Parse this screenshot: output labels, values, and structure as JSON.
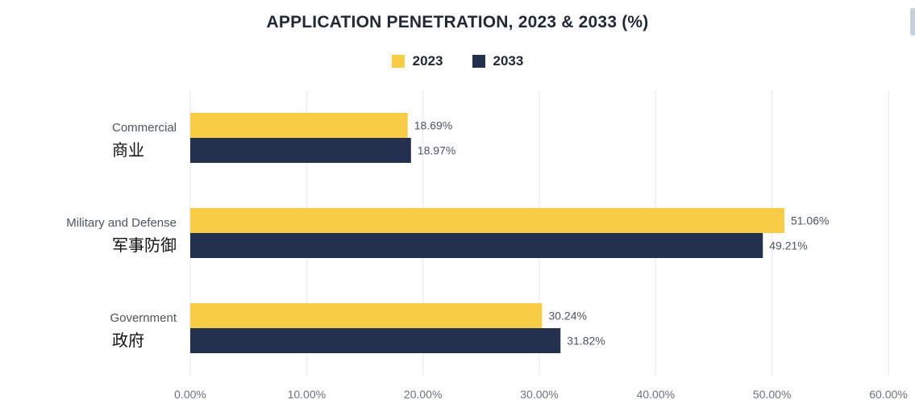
{
  "chart_data": {
    "type": "bar",
    "orientation": "horizontal",
    "title": "APPLICATION PENETRATION, 2023 & 2033 (%)",
    "categories": [
      {
        "en": "Commercial",
        "zh": "商业"
      },
      {
        "en": "Military and Defense",
        "zh": "军事防御"
      },
      {
        "en": "Government",
        "zh": "政府"
      }
    ],
    "series": [
      {
        "name": "2023",
        "color": "#F8CD45",
        "values": [
          18.69,
          51.06,
          30.24
        ],
        "labels": [
          "18.69%",
          "51.06%",
          "30.24%"
        ]
      },
      {
        "name": "2033",
        "color": "#23314F",
        "values": [
          18.97,
          49.21,
          31.82
        ],
        "labels": [
          "18.97%",
          "49.21%",
          "31.82%"
        ]
      }
    ],
    "xlim": [
      0,
      60
    ],
    "xticks": [
      0,
      10,
      20,
      30,
      40,
      50,
      60
    ],
    "xtick_labels": [
      "0.00%",
      "10.00%",
      "20.00%",
      "30.00%",
      "40.00%",
      "50.00%",
      "60.00%"
    ],
    "grid": true,
    "legend_position": "top-center"
  }
}
